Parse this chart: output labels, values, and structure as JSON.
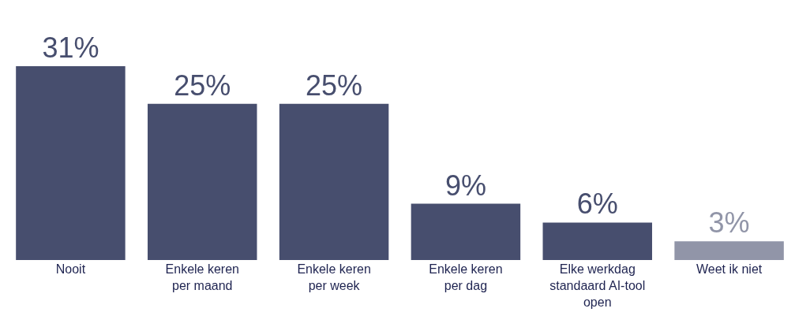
{
  "chart_data": {
    "type": "bar",
    "categories": [
      "Nooit",
      "Enkele keren\nper maand",
      "Enkele keren\nper week",
      "Enkele keren\nper dag",
      "Elke werkdag\nstandaard AI-tool\nopen",
      "Weet ik niet"
    ],
    "values": [
      31,
      25,
      25,
      9,
      6,
      3
    ],
    "value_labels": [
      "31%",
      "25%",
      "25%",
      "9%",
      "6%",
      "3%"
    ],
    "colors": [
      "#474e6e",
      "#474e6e",
      "#474e6e",
      "#474e6e",
      "#474e6e",
      "#9195a8"
    ]
  }
}
